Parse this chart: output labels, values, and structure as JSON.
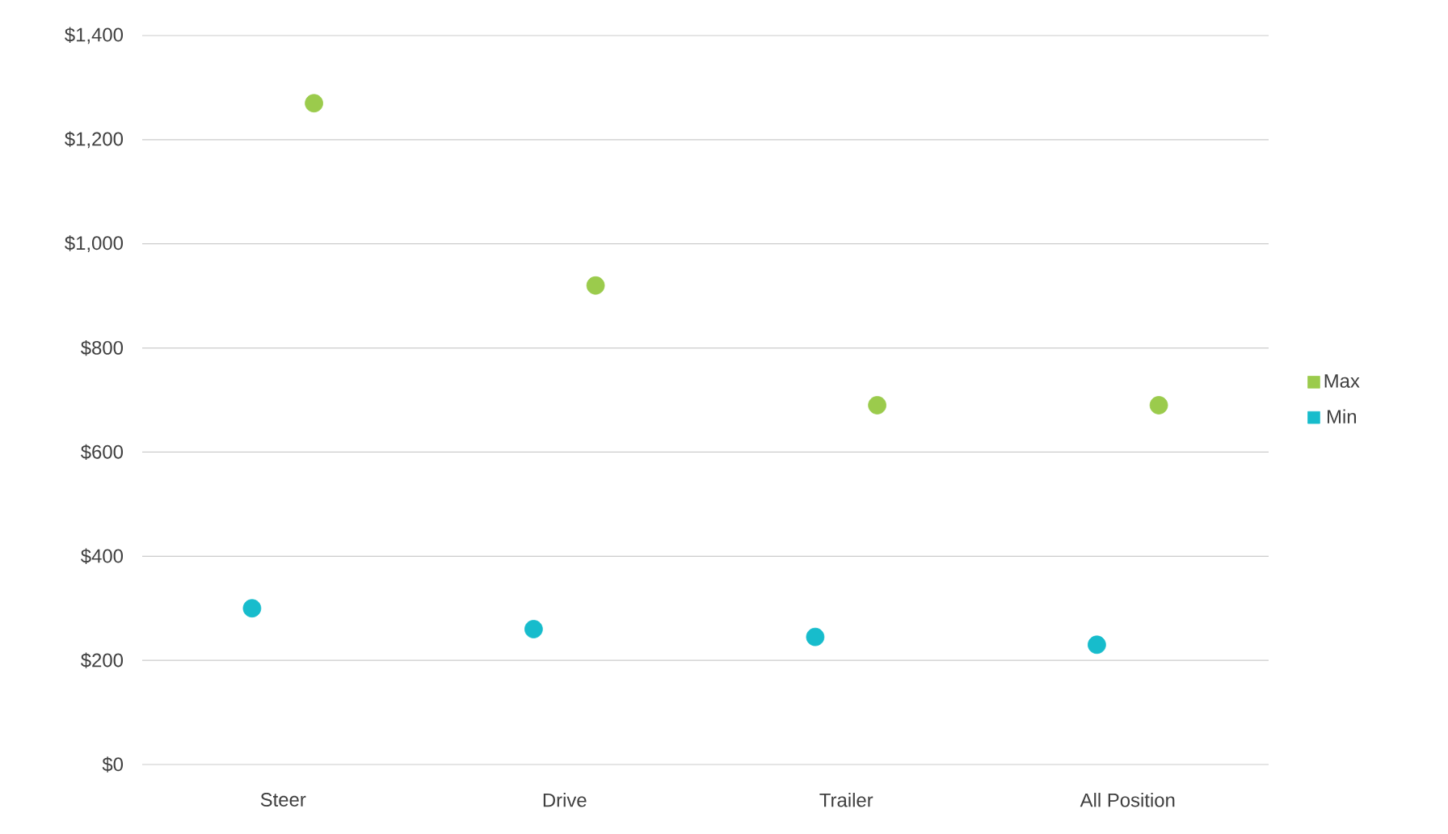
{
  "chart_data": {
    "type": "scatter",
    "categories": [
      "Steer",
      "Drive",
      "Trailer",
      "All Position"
    ],
    "series": [
      {
        "name": "Max",
        "color": "#9bcb4c",
        "values": [
          1270,
          920,
          690,
          690
        ]
      },
      {
        "name": "Min",
        "color": "#17bccc",
        "values": [
          300,
          260,
          245,
          230
        ]
      }
    ],
    "ylim": [
      0,
      1400
    ],
    "yticks": [
      {
        "value": 0,
        "label": "$0"
      },
      {
        "value": 200,
        "label": "$200"
      },
      {
        "value": 400,
        "label": "$400"
      },
      {
        "value": 600,
        "label": "$600"
      },
      {
        "value": 800,
        "label": "$800"
      },
      {
        "value": 1000,
        "label": "$1,000"
      },
      {
        "value": 1200,
        "label": "$1,200"
      },
      {
        "value": 1400,
        "label": "$1,400"
      }
    ],
    "grid": "y",
    "legend": "right"
  }
}
